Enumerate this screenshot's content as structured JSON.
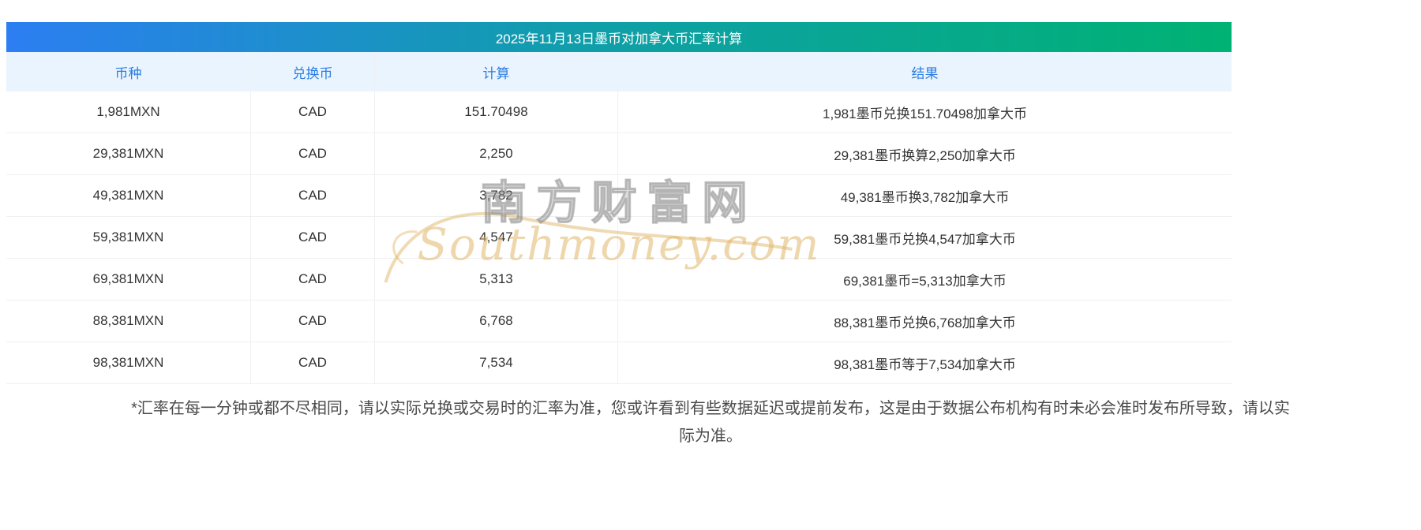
{
  "title": "2025年11月13日墨币对加拿大币汇率计算",
  "table": {
    "headers": [
      "币种",
      "兑换币",
      "计算",
      "结果"
    ],
    "columns": [
      "currency",
      "exchange-currency",
      "calculation",
      "result"
    ],
    "rows": [
      [
        "1,981MXN",
        "CAD",
        "151.70498",
        "1,981墨币兑换151.70498加拿大币"
      ],
      [
        "29,381MXN",
        "CAD",
        "2,250",
        "29,381墨币换算2,250加拿大币"
      ],
      [
        "49,381MXN",
        "CAD",
        "3,782",
        "49,381墨币换3,782加拿大币"
      ],
      [
        "59,381MXN",
        "CAD",
        "4,547",
        "59,381墨币兑换4,547加拿大币"
      ],
      [
        "69,381MXN",
        "CAD",
        "5,313",
        "69,381墨币=5,313加拿大币"
      ],
      [
        "88,381MXN",
        "CAD",
        "6,768",
        "88,381墨币兑换6,768加拿大币"
      ],
      [
        "98,381MXN",
        "CAD",
        "7,534",
        "98,381墨币等于7,534加拿大币"
      ]
    ]
  },
  "watermark": {
    "cn": "南方财富网",
    "en": "Southmoney.com"
  },
  "footer": {
    "full_text": "*汇率在每一分钟或都不尽相同，请以实际兑换或交易时的汇率为准，您或许看到有些数据延迟或提前发布，这是由于数据公布机构有时未必会准时发布所导致，请以实际为准。",
    "lines": [
      "*汇率在每一分钟或都不尽相同，请以实际兑换或交易时的汇率为准，您或许看到有些数据延迟或提前发布，这是由于数据公布机构有时未必会准时发布所导致，请以实",
      "际为准。"
    ]
  },
  "colors": {
    "title_gradient_start": "#2c7ef2",
    "title_gradient_end": "#00b273",
    "header_bg": "#e9f4fe",
    "header_text": "#2b7de2",
    "row_text": "#333333",
    "row_border": "#f0f0f0",
    "watermark_gold": "#e0b668",
    "watermark_gray": "#969696",
    "footer_text": "#4a4a4a"
  }
}
